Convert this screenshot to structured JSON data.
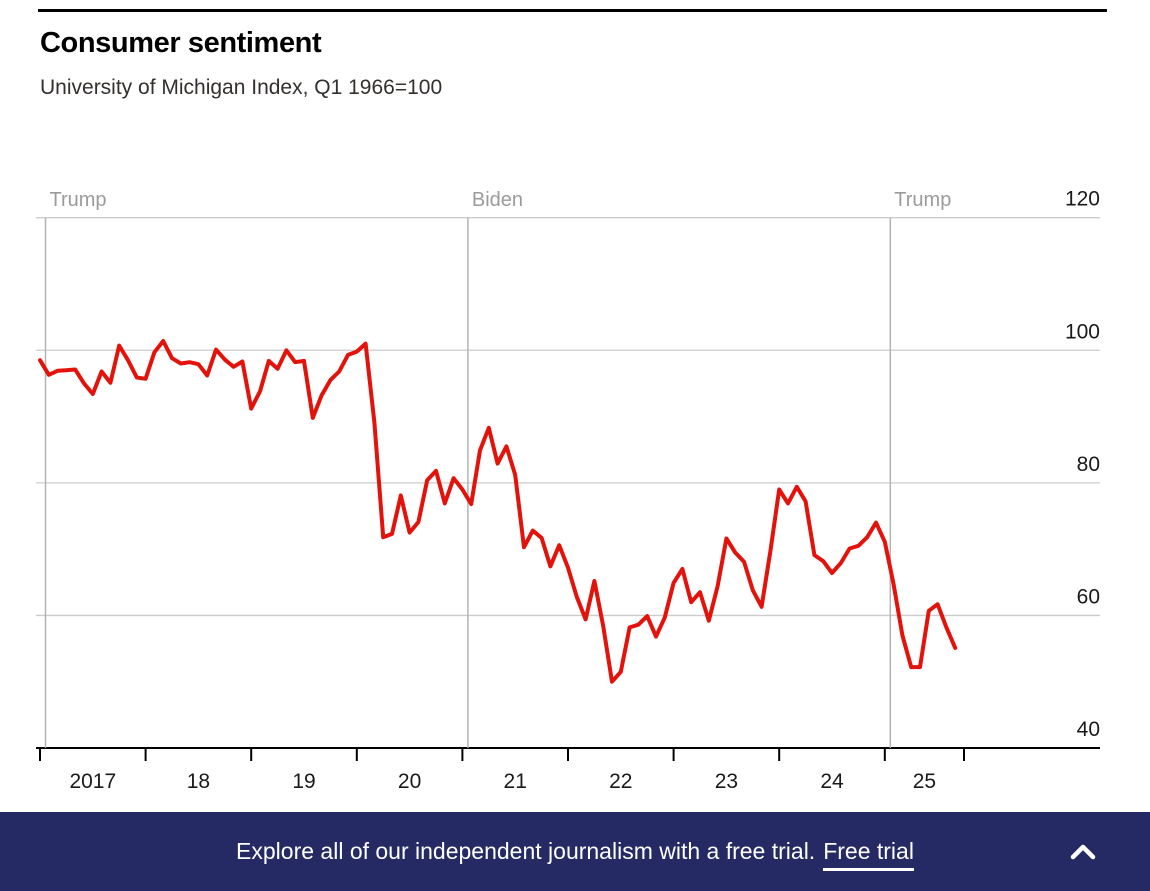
{
  "header": {
    "title": "Consumer sentiment",
    "subtitle": "University of Michigan Index, Q1 1966=100"
  },
  "chart_data": {
    "type": "line",
    "title": "Consumer sentiment",
    "subtitle": "University of Michigan Index, Q1 1966=100",
    "frequency": "monthly",
    "x_start": "2017-01",
    "x_end_tick": "2025-10",
    "x_tick_labels": [
      "2017",
      "18",
      "19",
      "20",
      "21",
      "22",
      "23",
      "24",
      "25"
    ],
    "y_ticks": [
      40,
      60,
      80,
      100,
      120
    ],
    "ylim": [
      40,
      120
    ],
    "grid": "horizontal",
    "legend": "none",
    "line_color": "#e3120b",
    "grid_color": "#cccccc",
    "baseline_color": "#000000",
    "term_line_color": "#b3b3b3",
    "annotation_label_color": "#9b9b9b",
    "series": [
      {
        "name": "University of Michigan consumer sentiment index",
        "color": "#e3120b",
        "start": "2017-01",
        "values": [
          98.5,
          96.3,
          96.9,
          97.0,
          97.1,
          95.0,
          93.4,
          96.8,
          95.1,
          100.7,
          98.5,
          95.9,
          95.7,
          99.7,
          101.4,
          98.8,
          98.0,
          98.2,
          97.9,
          96.2,
          100.1,
          98.6,
          97.5,
          98.3,
          91.2,
          93.8,
          98.4,
          97.2,
          100.0,
          98.2,
          98.4,
          89.8,
          93.2,
          95.5,
          96.8,
          99.3,
          99.8,
          101.0,
          89.1,
          71.8,
          72.3,
          78.1,
          72.5,
          74.1,
          80.4,
          81.8,
          76.9,
          80.7,
          79.0,
          76.8,
          84.9,
          88.3,
          82.9,
          85.5,
          81.2,
          70.3,
          72.8,
          71.7,
          67.4,
          70.6,
          67.2,
          62.8,
          59.4,
          65.2,
          58.4,
          50.0,
          51.5,
          58.2,
          58.6,
          59.9,
          56.8,
          59.7,
          64.9,
          67.0,
          62.0,
          63.5,
          59.2,
          64.4,
          71.6,
          69.5,
          68.1,
          63.8,
          61.3,
          69.7,
          79.0,
          76.9,
          79.4,
          77.2,
          69.1,
          68.2,
          66.4,
          67.9,
          70.1,
          70.5,
          71.8,
          74.0,
          71.1,
          64.7,
          57.0,
          52.2,
          52.2,
          60.7,
          61.7,
          58.2,
          55.1
        ]
      }
    ],
    "annotations": [
      {
        "label": "Trump",
        "date": "2017-01-20"
      },
      {
        "label": "Biden",
        "date": "2021-01-20"
      },
      {
        "label": "Trump",
        "date": "2025-01-20"
      }
    ]
  },
  "banner": {
    "message": "Explore all of our independent journalism with a free trial.",
    "link_label": "Free trial",
    "background_color": "#252a64",
    "text_color": "#ffffff",
    "chevron_icon": "chevron-up"
  }
}
